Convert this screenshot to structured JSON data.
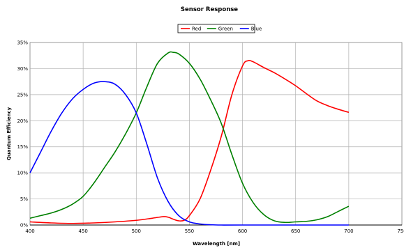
{
  "chart_data": {
    "type": "line",
    "title": "Sensor Response",
    "xlabel": "Wavelength [nm]",
    "ylabel": "Quantum Efficiency",
    "xlim": [
      400,
      750
    ],
    "ylim": [
      0,
      35
    ],
    "xticks": [
      "400",
      "450",
      "500",
      "550",
      "600",
      "650",
      "700",
      "750"
    ],
    "yticks": [
      "0%",
      "5%",
      "10%",
      "15%",
      "20%",
      "25%",
      "30%",
      "35%"
    ],
    "grid": true,
    "legend_position": "top-center",
    "series": [
      {
        "name": "Red",
        "color": "#ff0000",
        "points": [
          [
            400,
            0.6
          ],
          [
            420,
            0.4
          ],
          [
            440,
            0.3
          ],
          [
            460,
            0.4
          ],
          [
            480,
            0.6
          ],
          [
            500,
            0.9
          ],
          [
            515,
            1.3
          ],
          [
            525,
            1.6
          ],
          [
            530,
            1.5
          ],
          [
            535,
            1.1
          ],
          [
            540,
            0.8
          ],
          [
            545,
            0.9
          ],
          [
            550,
            1.8
          ],
          [
            560,
            5.0
          ],
          [
            570,
            10.5
          ],
          [
            580,
            17.0
          ],
          [
            590,
            25.0
          ],
          [
            600,
            30.5
          ],
          [
            605,
            31.5
          ],
          [
            610,
            31.3
          ],
          [
            620,
            30.2
          ],
          [
            630,
            29.2
          ],
          [
            640,
            28.0
          ],
          [
            650,
            26.7
          ],
          [
            660,
            25.2
          ],
          [
            670,
            23.8
          ],
          [
            680,
            22.9
          ],
          [
            690,
            22.2
          ],
          [
            700,
            21.6
          ]
        ]
      },
      {
        "name": "Green",
        "color": "#008000",
        "points": [
          [
            400,
            1.3
          ],
          [
            410,
            1.8
          ],
          [
            420,
            2.3
          ],
          [
            430,
            3.0
          ],
          [
            440,
            4.0
          ],
          [
            450,
            5.5
          ],
          [
            460,
            8.0
          ],
          [
            470,
            11.0
          ],
          [
            480,
            14.0
          ],
          [
            490,
            17.5
          ],
          [
            500,
            21.5
          ],
          [
            510,
            26.5
          ],
          [
            520,
            31.0
          ],
          [
            530,
            33.0
          ],
          [
            535,
            33.1
          ],
          [
            540,
            32.8
          ],
          [
            550,
            31.0
          ],
          [
            560,
            28.0
          ],
          [
            570,
            24.0
          ],
          [
            580,
            19.5
          ],
          [
            590,
            13.5
          ],
          [
            600,
            8.0
          ],
          [
            610,
            4.3
          ],
          [
            620,
            2.0
          ],
          [
            630,
            0.8
          ],
          [
            640,
            0.5
          ],
          [
            650,
            0.6
          ],
          [
            660,
            0.7
          ],
          [
            670,
            1.0
          ],
          [
            680,
            1.6
          ],
          [
            690,
            2.6
          ],
          [
            700,
            3.6
          ]
        ]
      },
      {
        "name": "Blue",
        "color": "#0000ff",
        "points": [
          [
            400,
            10.0
          ],
          [
            410,
            14.0
          ],
          [
            420,
            18.0
          ],
          [
            430,
            21.5
          ],
          [
            440,
            24.2
          ],
          [
            450,
            26.0
          ],
          [
            460,
            27.2
          ],
          [
            470,
            27.5
          ],
          [
            480,
            27.0
          ],
          [
            490,
            25.0
          ],
          [
            500,
            21.5
          ],
          [
            510,
            15.5
          ],
          [
            520,
            9.0
          ],
          [
            530,
            4.5
          ],
          [
            540,
            1.8
          ],
          [
            550,
            0.6
          ],
          [
            560,
            0.2
          ],
          [
            570,
            0.05
          ],
          [
            580,
            0.0
          ],
          [
            600,
            0.0
          ],
          [
            650,
            0.0
          ],
          [
            700,
            0.0
          ]
        ]
      }
    ]
  }
}
